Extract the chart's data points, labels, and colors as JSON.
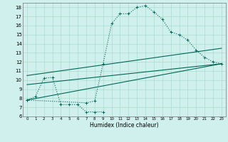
{
  "xlabel": "Humidex (Indice chaleur)",
  "bg_color": "#cff0ec",
  "grid_color": "#aaddcc",
  "line_color": "#006655",
  "xlim": [
    -0.5,
    23.5
  ],
  "ylim": [
    6,
    18.5
  ],
  "xticks": [
    0,
    1,
    2,
    3,
    4,
    5,
    6,
    7,
    8,
    9,
    10,
    11,
    12,
    13,
    14,
    15,
    16,
    17,
    18,
    19,
    20,
    21,
    22,
    23
  ],
  "yticks": [
    6,
    7,
    8,
    9,
    10,
    11,
    12,
    13,
    14,
    15,
    16,
    17,
    18
  ],
  "curve1_x": [
    0,
    1,
    2,
    3,
    4,
    5,
    6,
    7,
    8,
    9
  ],
  "curve1_y": [
    7.8,
    8.2,
    10.2,
    10.3,
    7.3,
    7.3,
    7.3,
    6.5,
    6.5,
    6.5
  ],
  "curve2_x": [
    0,
    7,
    8,
    9,
    10,
    11,
    12,
    13,
    14,
    15,
    16,
    17,
    18,
    19,
    20,
    21,
    22,
    23
  ],
  "curve2_y": [
    7.8,
    7.5,
    7.7,
    11.8,
    16.2,
    17.3,
    17.3,
    18.0,
    18.2,
    17.5,
    16.7,
    15.3,
    15.0,
    14.4,
    13.3,
    12.5,
    12.0,
    11.8
  ],
  "line1_x": [
    0,
    23
  ],
  "line1_y": [
    7.8,
    11.8
  ],
  "line2_x": [
    0,
    23
  ],
  "line2_y": [
    10.5,
    13.5
  ],
  "line3_x": [
    0,
    23
  ],
  "line3_y": [
    9.5,
    11.8
  ]
}
